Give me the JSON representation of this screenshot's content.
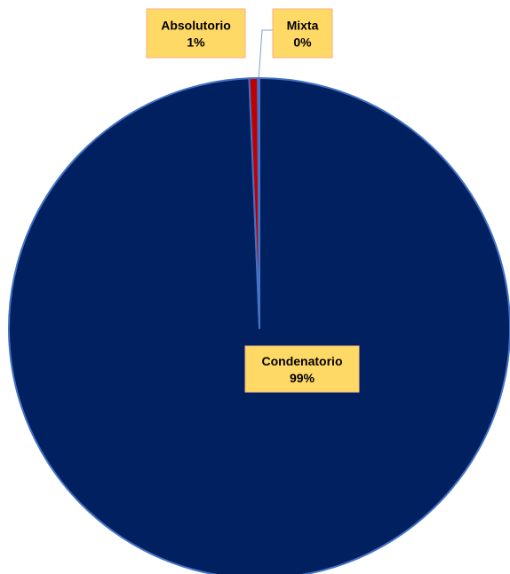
{
  "chart_data": {
    "type": "pie",
    "title": "",
    "slices": [
      {
        "label": "Condenatorio",
        "value": 99.35,
        "display": "99%",
        "color": "#002060"
      },
      {
        "label": "Absolutorio",
        "value": 0.55,
        "display": "1%",
        "color": "#C00000"
      },
      {
        "label": "Mixta",
        "value": 0.1,
        "display": "0%",
        "color": "#4472C4"
      }
    ],
    "label_fill": "#FFD966",
    "label_border": "#F4B183",
    "outline_color": "#4472C4",
    "legend": "none"
  }
}
